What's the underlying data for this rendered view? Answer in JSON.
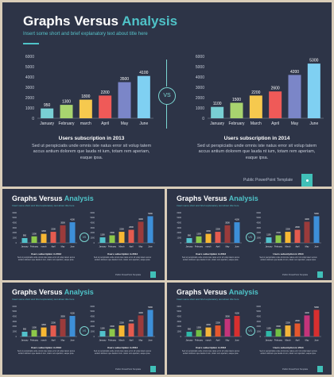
{
  "slide": {
    "title_part1": "Graphs Versus ",
    "title_part2": "Analysis",
    "subtitle": "Insert some short and brief explanatory text about title here",
    "vs_label": "VS",
    "footer": "Public PowerPoint Template",
    "caption1_title": "Users subscription in 2013",
    "caption2_title": "Users subscription in 2014",
    "caption_body": "Sed ut perspiciatis unde omnis iste natus error sit volup tatem accus antium dolorem que lauda nt ium, totam rem aperiam, eaque ipsa."
  },
  "colors": {
    "background": "#2d3447",
    "accent": "#4fc3c8",
    "bars_main": [
      "#79cfd4",
      "#a8d46f",
      "#f6c94e",
      "#ef5a58",
      "#7b86c8",
      "#7fd0f2"
    ],
    "bars_variant_a": [
      "#52c1cb",
      "#8dc84a",
      "#f7b733",
      "#e45b4f",
      "#9b3b3b",
      "#3d8fd8"
    ],
    "bars_variant_b": [
      "#2fb8a8",
      "#72c043",
      "#f4b53a",
      "#e4572e",
      "#c5347a",
      "#d72f2f"
    ]
  },
  "chart_data": [
    {
      "type": "bar",
      "categories": [
        "January",
        "February",
        "march",
        "April",
        "May",
        "June"
      ],
      "values": [
        950,
        1300,
        1800,
        2200,
        3500,
        4100
      ],
      "ylim": [
        0,
        6000
      ],
      "yticks": [
        0,
        1000,
        2000,
        3000,
        4000,
        5000,
        6000
      ]
    },
    {
      "type": "bar",
      "categories": [
        "January",
        "February",
        "March",
        "April",
        "May",
        "June"
      ],
      "values": [
        1100,
        1500,
        2200,
        2600,
        4200,
        5300
      ],
      "ylim": [
        0,
        6000
      ],
      "yticks": [
        0,
        1000,
        2000,
        3000,
        4000,
        5000,
        6000
      ]
    }
  ]
}
